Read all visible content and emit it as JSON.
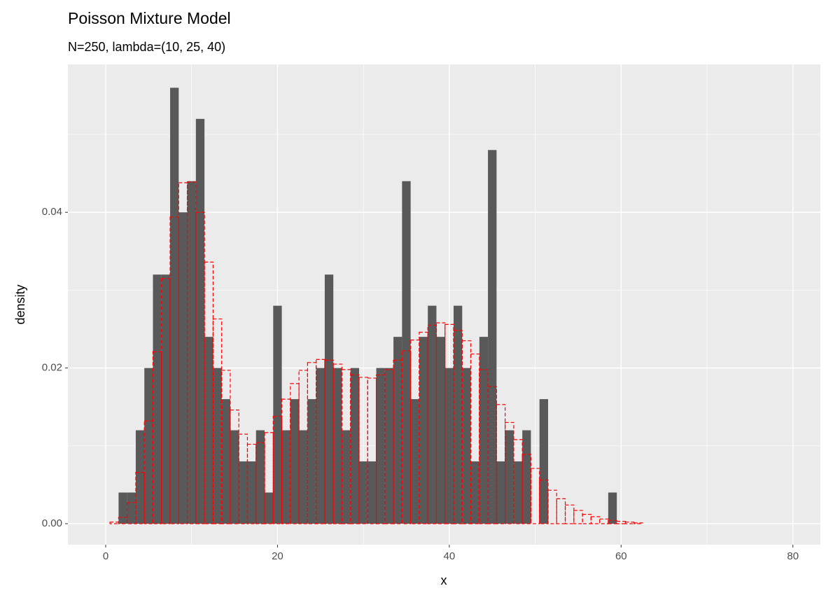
{
  "chart_data": {
    "type": "histogram",
    "title": "Poisson Mixture Model",
    "subtitle": "N=250, lambda=(10, 25, 40)",
    "x_label": "x",
    "y_label": "density",
    "x": [
      0,
      1,
      2,
      3,
      4,
      5,
      6,
      7,
      8,
      9,
      10,
      11,
      12,
      13,
      14,
      15,
      16,
      17,
      18,
      19,
      20,
      21,
      22,
      23,
      24,
      25,
      26,
      27,
      28,
      29,
      30,
      31,
      32,
      33,
      34,
      35,
      36,
      37,
      38,
      39,
      40,
      41,
      42,
      43,
      44,
      45,
      46,
      47,
      48,
      49,
      50,
      51,
      52,
      53,
      54,
      55,
      56,
      57,
      58,
      59,
      60,
      61,
      62,
      63,
      64,
      65,
      66,
      67,
      68,
      69,
      70,
      71,
      72,
      73,
      74,
      75,
      76,
      77,
      78,
      79,
      80
    ],
    "values": [
      0,
      0,
      0.004,
      0.004,
      0.012,
      0.02,
      0.032,
      0.032,
      0.056,
      0.04,
      0.044,
      0.052,
      0.024,
      0.02,
      0.016,
      0.012,
      0.008,
      0.008,
      0.012,
      0.004,
      0.028,
      0.012,
      0.016,
      0.012,
      0.016,
      0.02,
      0.032,
      0.02,
      0.012,
      0.02,
      0.008,
      0.008,
      0.02,
      0.02,
      0.024,
      0.044,
      0.016,
      0.024,
      0.028,
      0.024,
      0.02,
      0.028,
      0.02,
      0.008,
      0.024,
      0.048,
      0.008,
      0.012,
      0.008,
      0.012,
      0,
      0.016,
      0,
      0,
      0,
      0,
      0,
      0,
      0,
      0.004,
      0,
      0,
      0,
      0,
      0,
      0,
      0,
      0,
      0,
      0,
      0,
      0,
      0,
      0,
      0,
      0,
      0,
      0,
      0,
      0,
      0
    ],
    "color": "#595959",
    "fit_values": [
      0,
      0.0002,
      0.0008,
      0.0027,
      0.0066,
      0.0132,
      0.0221,
      0.0315,
      0.0394,
      0.0438,
      0.0439,
      0.04,
      0.0336,
      0.0263,
      0.0197,
      0.0146,
      0.0115,
      0.0102,
      0.0104,
      0.0117,
      0.0138,
      0.016,
      0.018,
      0.0197,
      0.0207,
      0.0211,
      0.021,
      0.0205,
      0.0198,
      0.0191,
      0.0188,
      0.0187,
      0.0191,
      0.0198,
      0.021,
      0.0222,
      0.0236,
      0.0246,
      0.0255,
      0.0258,
      0.0256,
      0.0248,
      0.0235,
      0.0218,
      0.0198,
      0.0176,
      0.0153,
      0.013,
      0.0108,
      0.0089,
      0.0071,
      0.0056,
      0.0043,
      0.0032,
      0.0024,
      0.0017,
      0.0012,
      0.0009,
      0.0006,
      0.0004,
      0.0003,
      0.0002,
      0.0001,
      0,
      0,
      0,
      0,
      0,
      0,
      0,
      0,
      0,
      0,
      0,
      0,
      0,
      0,
      0,
      0,
      0,
      0
    ],
    "fit_color": "#ff0000",
    "xlim": [
      -4.4,
      83.2
    ],
    "ylim": [
      -0.0027,
      0.059
    ],
    "xticks": [
      0,
      20,
      40,
      60,
      80
    ],
    "xminor": [
      10,
      30,
      50,
      70
    ],
    "yticks": [
      {
        "value": 0,
        "label": "0.00"
      },
      {
        "value": 0.02,
        "label": "0.02"
      },
      {
        "value": 0.04,
        "label": "0.04"
      }
    ],
    "yminor": [
      0.01,
      0.03,
      0.05
    ],
    "grid": true
  }
}
